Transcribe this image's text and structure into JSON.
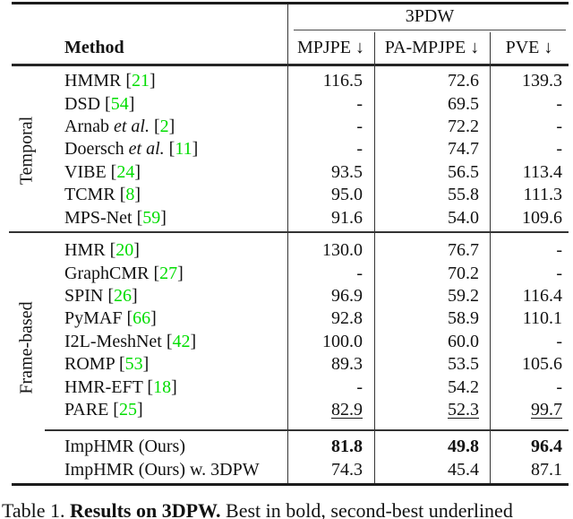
{
  "header": {
    "group": "3PDW",
    "method_col": "Method",
    "cols": [
      "MPJPE ↓",
      "PA-MPJPE ↓",
      "PVE ↓"
    ]
  },
  "sections": [
    {
      "label": "Temporal",
      "rows": [
        {
          "name": "HMMR",
          "etal": "",
          "cite": "21",
          "values": [
            "116.5",
            "72.6",
            "139.3"
          ],
          "style": "normal"
        },
        {
          "name": "DSD",
          "etal": "",
          "cite": "54",
          "values": [
            "-",
            "69.5",
            "-"
          ],
          "style": "normal"
        },
        {
          "name": "Arnab",
          "etal": "et al.",
          "cite": "2",
          "values": [
            "-",
            "72.2",
            "-"
          ],
          "style": "normal"
        },
        {
          "name": "Doersch",
          "etal": "et al.",
          "cite": "11",
          "values": [
            "-",
            "74.7",
            "-"
          ],
          "style": "normal"
        },
        {
          "name": "VIBE",
          "etal": "",
          "cite": "24",
          "values": [
            "93.5",
            "56.5",
            "113.4"
          ],
          "style": "normal"
        },
        {
          "name": "TCMR",
          "etal": "",
          "cite": "8",
          "values": [
            "95.0",
            "55.8",
            "111.3"
          ],
          "style": "normal"
        },
        {
          "name": "MPS-Net",
          "etal": "",
          "cite": "59",
          "values": [
            "91.6",
            "54.0",
            "109.6"
          ],
          "style": "normal"
        }
      ]
    },
    {
      "label": "Frame-based",
      "rows": [
        {
          "name": "HMR",
          "etal": "",
          "cite": "20",
          "values": [
            "130.0",
            "76.7",
            "-"
          ],
          "style": "normal"
        },
        {
          "name": "GraphCMR",
          "etal": "",
          "cite": "27",
          "values": [
            "-",
            "70.2",
            "-"
          ],
          "style": "normal"
        },
        {
          "name": "SPIN",
          "etal": "",
          "cite": "26",
          "values": [
            "96.9",
            "59.2",
            "116.4"
          ],
          "style": "normal"
        },
        {
          "name": "PyMAF",
          "etal": "",
          "cite": "66",
          "values": [
            "92.8",
            "58.9",
            "110.1"
          ],
          "style": "normal"
        },
        {
          "name": "I2L-MeshNet",
          "etal": "",
          "cite": "42",
          "values": [
            "100.0",
            "60.0",
            "-"
          ],
          "style": "normal"
        },
        {
          "name": "ROMP",
          "etal": "",
          "cite": "53",
          "values": [
            "89.3",
            "53.5",
            "105.6"
          ],
          "style": "normal"
        },
        {
          "name": "HMR-EFT",
          "etal": "",
          "cite": "18",
          "values": [
            "-",
            "54.2",
            "-"
          ],
          "style": "normal"
        },
        {
          "name": "PARE",
          "etal": "",
          "cite": "25",
          "values": [
            "82.9",
            "52.3",
            "99.7"
          ],
          "style": "underline"
        }
      ]
    },
    {
      "label": "",
      "rows": [
        {
          "name": "ImpHMR (Ours)",
          "etal": "",
          "cite": "",
          "values": [
            "81.8",
            "49.8",
            "96.4"
          ],
          "style": "bold"
        },
        {
          "name": "ImpHMR (Ours) w. 3DPW",
          "etal": "",
          "cite": "",
          "values": [
            "74.3",
            "45.4",
            "87.1"
          ],
          "style": "normal"
        }
      ]
    }
  ],
  "caption": {
    "prefix": "Table 1. ",
    "bold": "Results on 3DPW.",
    "suffix": " Best in bold, second-best underlined"
  },
  "colors": {
    "citation_green": "#00dd00"
  }
}
